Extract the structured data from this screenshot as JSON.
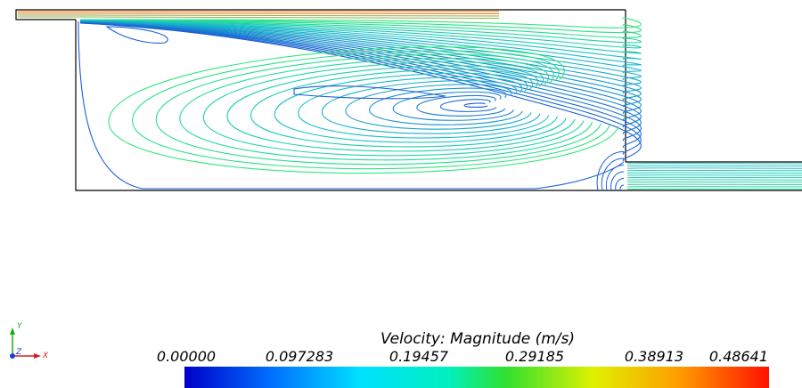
{
  "colorbar": {
    "title": "Velocity: Magnitude (m/s)",
    "ticks": [
      "0.00000",
      "0.097283",
      "0.19457",
      "0.29185",
      "0.38913",
      "0.48641"
    ],
    "range": [
      0.0,
      0.48641
    ],
    "colormap": "rainbow"
  },
  "orientation_axes": {
    "x_label": "X",
    "y_label": "Y",
    "z_label": "Z",
    "x_color": "#d62020",
    "y_color": "#1fa81f",
    "z_color": "#1a3fd8"
  },
  "contour_colors": {
    "low": "#1a5fd6",
    "mid": "#18c4c8",
    "high": "#2ee87a",
    "peak": "#f07c1e"
  }
}
